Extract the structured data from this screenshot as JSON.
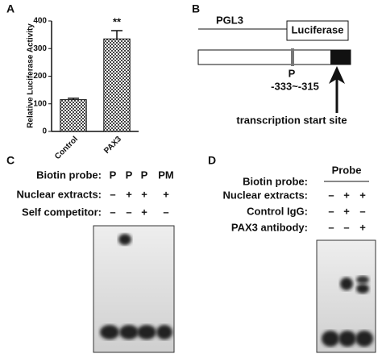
{
  "chart_data": {
    "type": "bar",
    "panel_label": "A",
    "ylabel": "Relative Luciferase Activity",
    "categories": [
      "Control",
      "PAX3"
    ],
    "values": [
      115,
      335
    ],
    "errors": [
      5,
      30
    ],
    "color": "#444444",
    "annotations": [
      null,
      "**"
    ],
    "ylim": [
      0,
      400
    ],
    "yticks": [
      0,
      100,
      200,
      300,
      400
    ]
  },
  "panel_b": {
    "label": "B",
    "vector": "PGL3",
    "gene": "Luciferase",
    "site": "P",
    "position": "-333~-315",
    "arrow_label": "transcription start site"
  },
  "panel_c": {
    "label": "C",
    "rows": [
      {
        "name": "Biotin probe:",
        "cells": [
          "P",
          "P",
          "P",
          "PM"
        ]
      },
      {
        "name": "Nuclear extracts:",
        "cells": [
          "–",
          "+",
          "+",
          "+"
        ]
      },
      {
        "name": "Self competitor:",
        "cells": [
          "–",
          "–",
          "+",
          "–"
        ]
      }
    ]
  },
  "panel_d": {
    "label": "D",
    "header": "Probe",
    "rows": [
      {
        "name": "Biotin probe:",
        "cells": []
      },
      {
        "name": "Nuclear extracts:",
        "cells": [
          "–",
          "+",
          "+"
        ]
      },
      {
        "name": "Control IgG:",
        "cells": [
          "–",
          "+",
          "–"
        ]
      },
      {
        "name": "PAX3 antibody:",
        "cells": [
          "–",
          "–",
          "+"
        ]
      }
    ]
  }
}
